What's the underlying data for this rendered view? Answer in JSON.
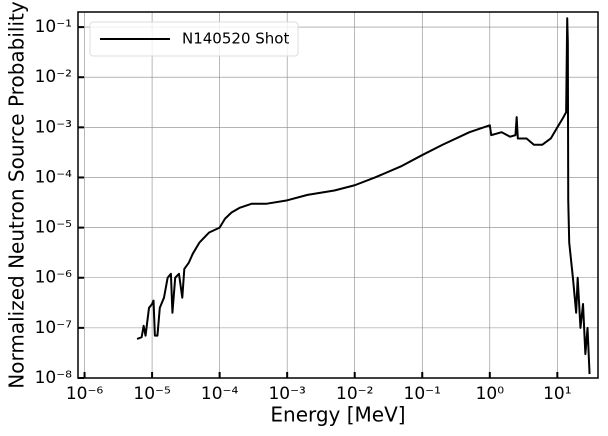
{
  "chart_data": {
    "type": "line",
    "xlabel": "Energy [MeV]",
    "ylabel": "Normalized Neutron Source Probability",
    "x": [
      6e-06,
      7e-06,
      7.5e-06,
      8e-06,
      9e-06,
      1e-05,
      1.05e-05,
      1.1e-05,
      1.2e-05,
      1.3e-05,
      1.5e-05,
      1.7e-05,
      1.9e-05,
      2e-05,
      2.2e-05,
      2.5e-05,
      2.8e-05,
      3e-05,
      3.5e-05,
      4e-05,
      5e-05,
      7e-05,
      0.0001,
      0.00012,
      0.00015,
      0.0002,
      0.0003,
      0.0005,
      0.001,
      0.002,
      0.005,
      0.01,
      0.02,
      0.05,
      0.1,
      0.2,
      0.5,
      1.0,
      1.05,
      1.5,
      2.0,
      2.4,
      2.5,
      2.6,
      3.5,
      4.5,
      6,
      8,
      10,
      12,
      13.5,
      14,
      14.3,
      14.5,
      15,
      17,
      19,
      20,
      22,
      24,
      26,
      28,
      30
    ],
    "series": [
      {
        "name": "N140520 Shot",
        "color": "#000000",
        "values": [
          6e-08,
          6.5e-08,
          1.1e-07,
          7e-08,
          2.5e-07,
          3e-07,
          3.5e-07,
          7e-08,
          7e-08,
          2.5e-07,
          4e-07,
          1e-06,
          1.2e-06,
          2e-07,
          1e-06,
          1.2e-06,
          4e-07,
          1.5e-06,
          2e-06,
          3e-06,
          5e-06,
          8e-06,
          1e-05,
          1.5e-05,
          2e-05,
          2.5e-05,
          3e-05,
          3e-05,
          3.5e-05,
          4.5e-05,
          5.5e-05,
          7e-05,
          0.0001,
          0.00017,
          0.00028,
          0.00045,
          0.0008,
          0.0011,
          0.0007,
          0.0008,
          0.00065,
          0.0007,
          0.0016,
          0.0006,
          0.0006,
          0.00045,
          0.00045,
          0.0006,
          0.001,
          0.0015,
          0.002,
          0.15,
          0.05,
          3.5e-05,
          5e-06,
          1e-06,
          2e-07,
          1e-06,
          1e-07,
          3e-07,
          3e-08,
          1e-07,
          1.2e-08
        ]
      }
    ],
    "xlim": [
      8e-07,
      40
    ],
    "ylim": [
      1e-08,
      0.2
    ],
    "log_x": true,
    "log_y": true,
    "grid": true,
    "legend": "upper left",
    "xticks": [
      {
        "value": 1e-06,
        "label": "10⁻⁶"
      },
      {
        "value": 1e-05,
        "label": "10⁻⁵"
      },
      {
        "value": 0.0001,
        "label": "10⁻⁴"
      },
      {
        "value": 0.001,
        "label": "10⁻³"
      },
      {
        "value": 0.01,
        "label": "10⁻²"
      },
      {
        "value": 0.1,
        "label": "10⁻¹"
      },
      {
        "value": 1,
        "label": "10⁰"
      },
      {
        "value": 10,
        "label": "10¹"
      }
    ],
    "yticks": [
      {
        "value": 1e-08,
        "label": "10⁻⁸"
      },
      {
        "value": 1e-07,
        "label": "10⁻⁷"
      },
      {
        "value": 1e-06,
        "label": "10⁻⁶"
      },
      {
        "value": 1e-05,
        "label": "10⁻⁵"
      },
      {
        "value": 0.0001,
        "label": "10⁻⁴"
      },
      {
        "value": 0.001,
        "label": "10⁻³"
      },
      {
        "value": 0.01,
        "label": "10⁻²"
      },
      {
        "value": 0.1,
        "label": "10⁻¹"
      }
    ]
  }
}
